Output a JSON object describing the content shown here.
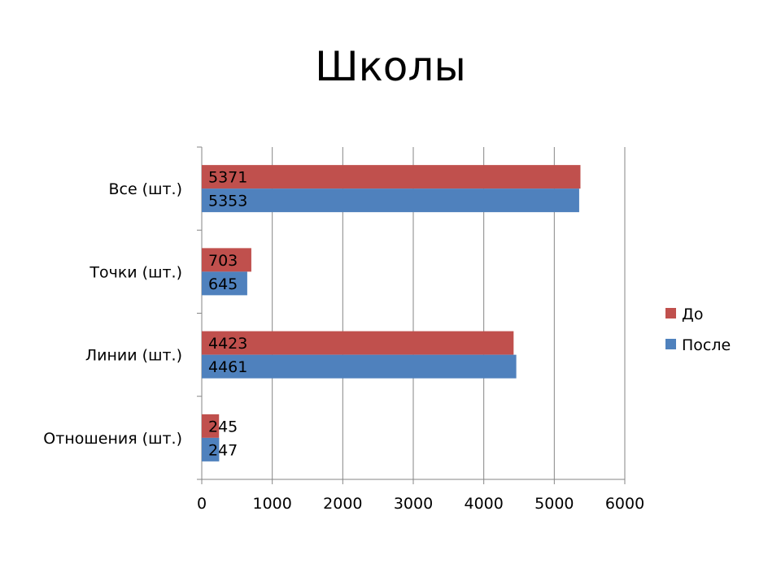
{
  "slide": {
    "title": "Школы"
  },
  "chart_data": {
    "type": "bar",
    "orientation": "horizontal",
    "title": "Школы",
    "categories": [
      "Все (шт.)",
      "Точки (шт.)",
      "Линии (шт.)",
      "Отношения (шт.)"
    ],
    "series": [
      {
        "name": "До",
        "color": "#c0504d",
        "values": [
          5371,
          703,
          4423,
          245
        ]
      },
      {
        "name": "После",
        "color": "#4f81bd",
        "values": [
          5353,
          645,
          4461,
          247
        ]
      }
    ],
    "xticks": [
      "0",
      "1000",
      "2000",
      "3000",
      "4000",
      "5000",
      "6000"
    ],
    "xlim": [
      0,
      6000
    ],
    "grid": true,
    "legend": "right",
    "data_labels": true
  }
}
